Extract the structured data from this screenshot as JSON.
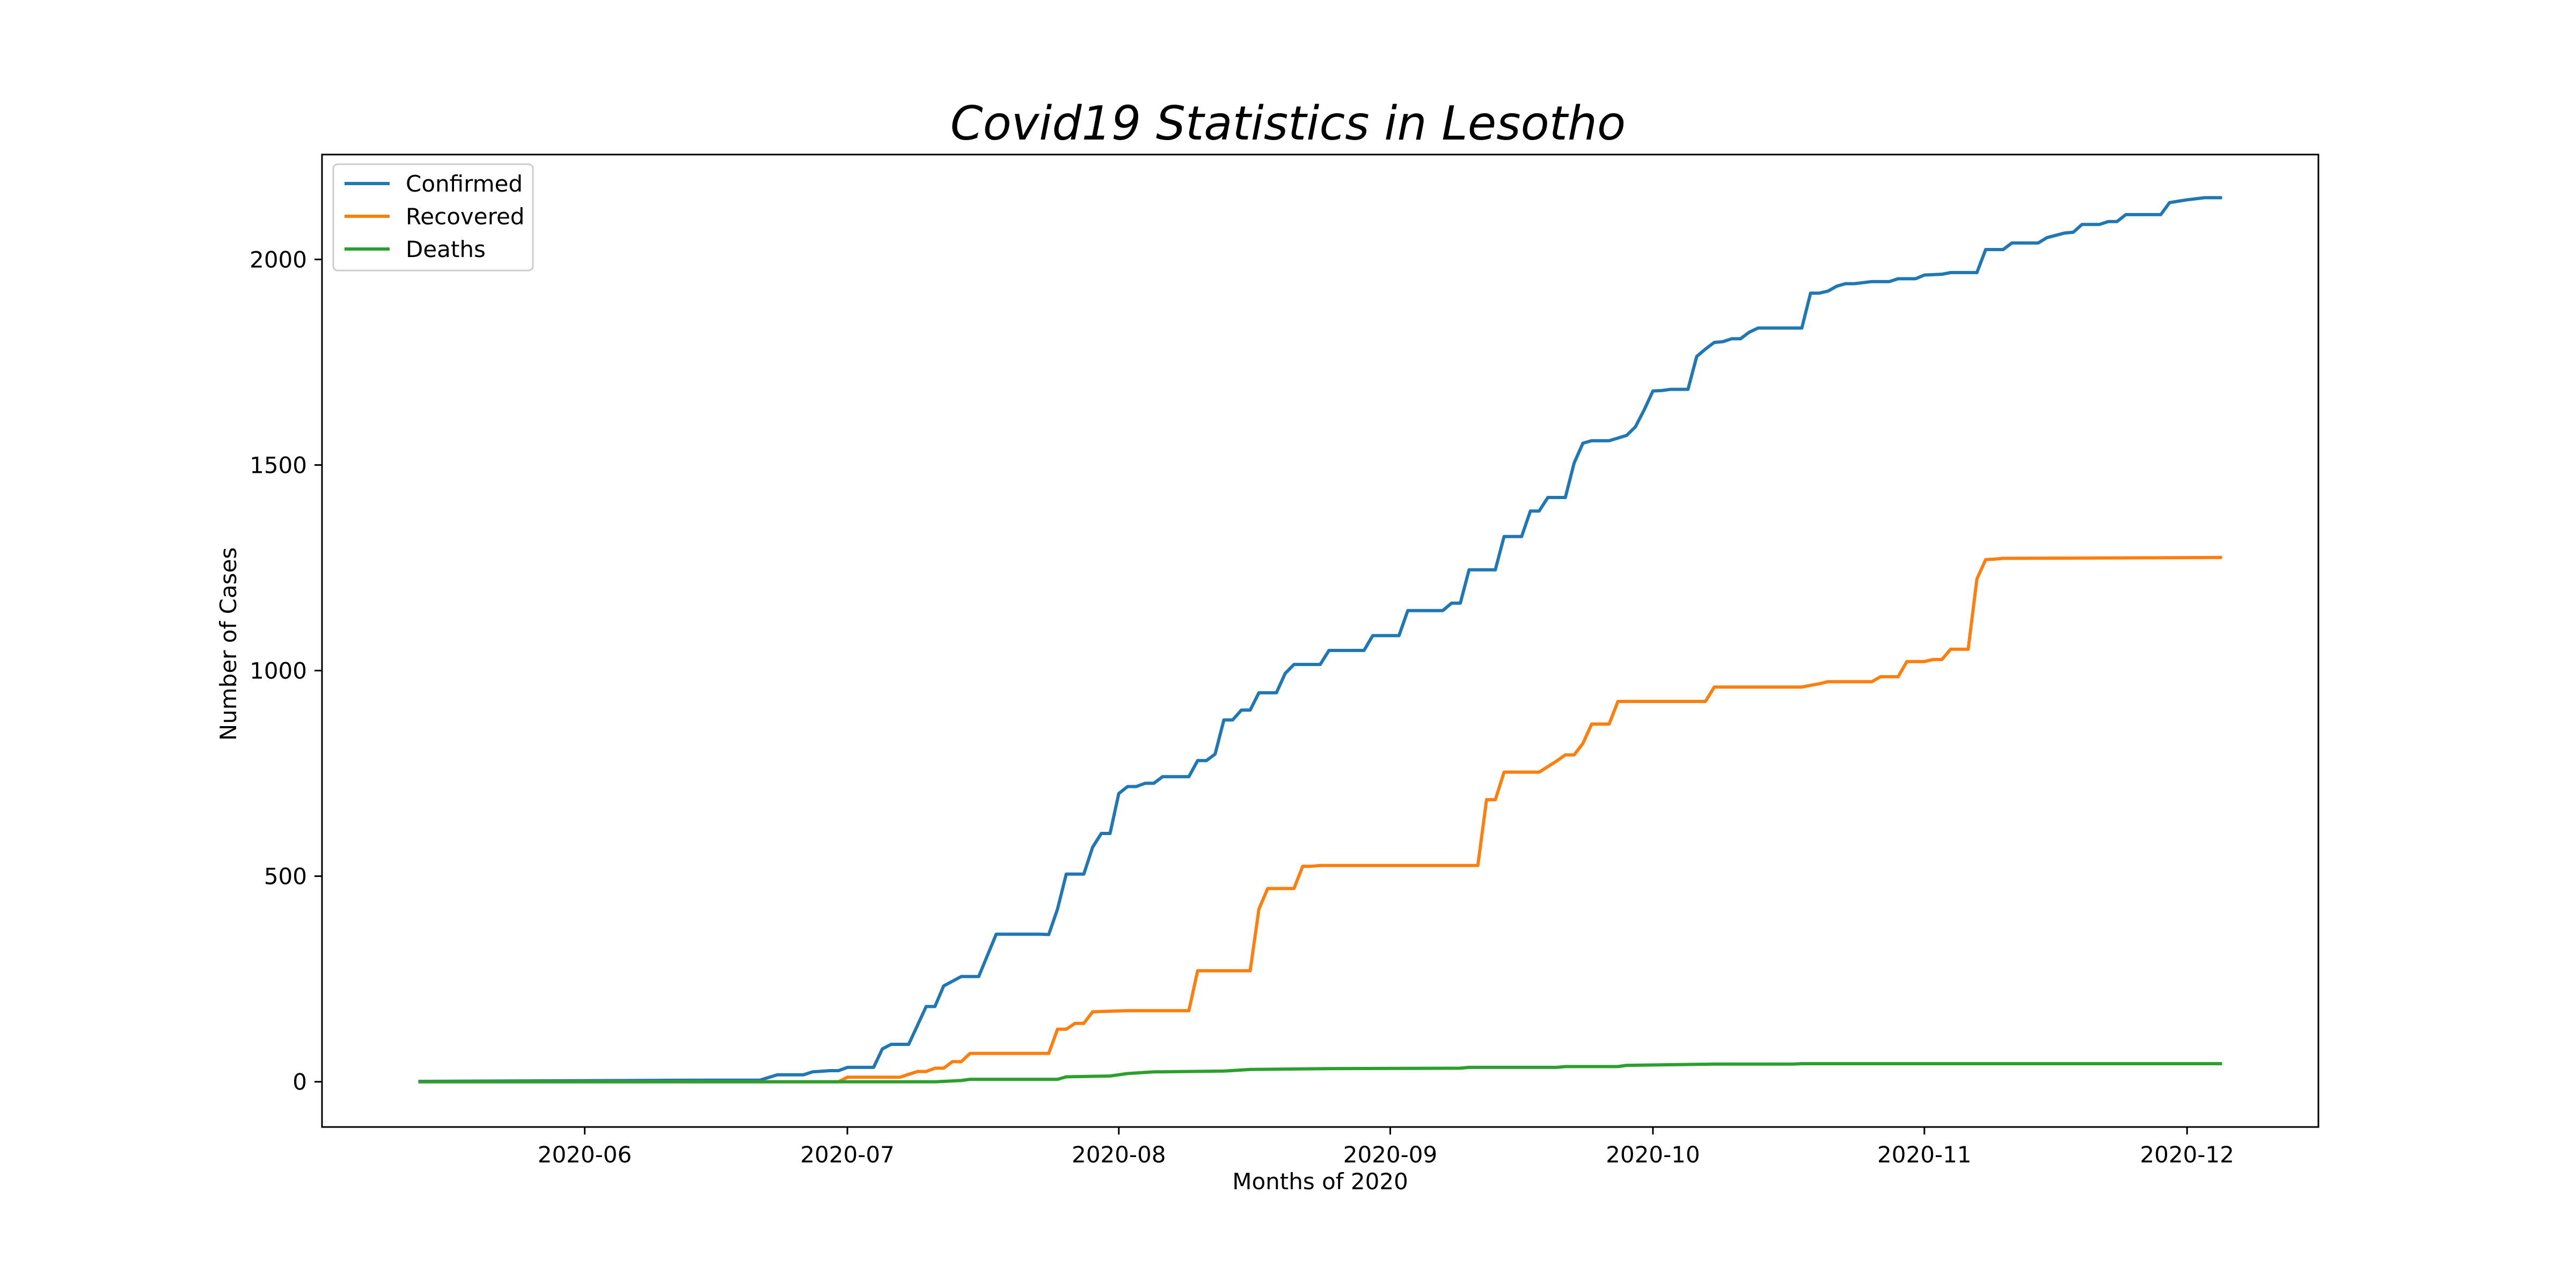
{
  "chart_data": {
    "type": "line",
    "title": "Covid19 Statistics in Lesotho",
    "xlabel": "Months of 2020",
    "ylabel": "Number of Cases",
    "x_axis": {
      "type": "date",
      "range": [
        "2020-05-02",
        "2020-12-16"
      ],
      "ticks": [
        "2020-06-01",
        "2020-07-01",
        "2020-08-01",
        "2020-09-01",
        "2020-10-01",
        "2020-11-01",
        "2020-12-01"
      ],
      "tick_labels": [
        "2020-06",
        "2020-07",
        "2020-08",
        "2020-09",
        "2020-10",
        "2020-11",
        "2020-12"
      ]
    },
    "y_axis": {
      "range": [
        -110,
        2255
      ],
      "ticks": [
        0,
        500,
        1000,
        1500,
        2000
      ],
      "tick_labels": [
        "0",
        "500",
        "1000",
        "1500",
        "2000"
      ]
    },
    "grid": false,
    "legend": {
      "placement": "top-left",
      "entries": [
        "Confirmed",
        "Recovered",
        "Deaths"
      ]
    },
    "series": [
      {
        "name": "Confirmed",
        "color": "#1f77b4",
        "points": [
          [
            "2020-05-13",
            1
          ],
          [
            "2020-06-15",
            4
          ],
          [
            "2020-06-21",
            4
          ],
          [
            "2020-06-23",
            17
          ],
          [
            "2020-06-26",
            17
          ],
          [
            "2020-06-27",
            24
          ],
          [
            "2020-06-29",
            27
          ],
          [
            "2020-06-30",
            27
          ],
          [
            "2020-07-01",
            35
          ],
          [
            "2020-07-04",
            35
          ],
          [
            "2020-07-05",
            80
          ],
          [
            "2020-07-06",
            91
          ],
          [
            "2020-07-08",
            91
          ],
          [
            "2020-07-10",
            183
          ],
          [
            "2020-07-11",
            183
          ],
          [
            "2020-07-12",
            233
          ],
          [
            "2020-07-14",
            256
          ],
          [
            "2020-07-16",
            256
          ],
          [
            "2020-07-18",
            359
          ],
          [
            "2020-07-23",
            359
          ],
          [
            "2020-07-24",
            358
          ],
          [
            "2020-07-25",
            420
          ],
          [
            "2020-07-26",
            505
          ],
          [
            "2020-07-28",
            505
          ],
          [
            "2020-07-29",
            570
          ],
          [
            "2020-07-30",
            604
          ],
          [
            "2020-07-31",
            604
          ],
          [
            "2020-08-01",
            701
          ],
          [
            "2020-08-02",
            718
          ],
          [
            "2020-08-03",
            718
          ],
          [
            "2020-08-04",
            726
          ],
          [
            "2020-08-05",
            726
          ],
          [
            "2020-08-06",
            742
          ],
          [
            "2020-08-09",
            742
          ],
          [
            "2020-08-10",
            781
          ],
          [
            "2020-08-11",
            781
          ],
          [
            "2020-08-12",
            797
          ],
          [
            "2020-08-13",
            880
          ],
          [
            "2020-08-14",
            880
          ],
          [
            "2020-08-15",
            904
          ],
          [
            "2020-08-16",
            904
          ],
          [
            "2020-08-17",
            946
          ],
          [
            "2020-08-19",
            946
          ],
          [
            "2020-08-20",
            993
          ],
          [
            "2020-08-21",
            1015
          ],
          [
            "2020-08-24",
            1015
          ],
          [
            "2020-08-25",
            1049
          ],
          [
            "2020-08-29",
            1049
          ],
          [
            "2020-08-30",
            1085
          ],
          [
            "2020-09-02",
            1085
          ],
          [
            "2020-09-03",
            1146
          ],
          [
            "2020-09-07",
            1146
          ],
          [
            "2020-09-08",
            1164
          ],
          [
            "2020-09-09",
            1164
          ],
          [
            "2020-09-10",
            1245
          ],
          [
            "2020-09-13",
            1245
          ],
          [
            "2020-09-14",
            1326
          ],
          [
            "2020-09-16",
            1326
          ],
          [
            "2020-09-17",
            1388
          ],
          [
            "2020-09-18",
            1388
          ],
          [
            "2020-09-19",
            1421
          ],
          [
            "2020-09-21",
            1421
          ],
          [
            "2020-09-22",
            1505
          ],
          [
            "2020-09-23",
            1553
          ],
          [
            "2020-09-24",
            1559
          ],
          [
            "2020-09-26",
            1559
          ],
          [
            "2020-09-28",
            1572
          ],
          [
            "2020-09-29",
            1593
          ],
          [
            "2020-09-30",
            1634
          ],
          [
            "2020-10-01",
            1680
          ],
          [
            "2020-10-02",
            1681
          ],
          [
            "2020-10-03",
            1684
          ],
          [
            "2020-10-05",
            1684
          ],
          [
            "2020-10-06",
            1764
          ],
          [
            "2020-10-07",
            1782
          ],
          [
            "2020-10-08",
            1798
          ],
          [
            "2020-10-09",
            1800
          ],
          [
            "2020-10-10",
            1807
          ],
          [
            "2020-10-11",
            1807
          ],
          [
            "2020-10-12",
            1823
          ],
          [
            "2020-10-13",
            1833
          ],
          [
            "2020-10-18",
            1833
          ],
          [
            "2020-10-19",
            1918
          ],
          [
            "2020-10-20",
            1918
          ],
          [
            "2020-10-21",
            1923
          ],
          [
            "2020-10-22",
            1935
          ],
          [
            "2020-10-23",
            1941
          ],
          [
            "2020-10-24",
            1941
          ],
          [
            "2020-10-26",
            1946
          ],
          [
            "2020-10-28",
            1946
          ],
          [
            "2020-10-29",
            1953
          ],
          [
            "2020-10-31",
            1953
          ],
          [
            "2020-11-01",
            1962
          ],
          [
            "2020-11-03",
            1964
          ],
          [
            "2020-11-04",
            1968
          ],
          [
            "2020-11-07",
            1968
          ],
          [
            "2020-11-08",
            2024
          ],
          [
            "2020-11-10",
            2024
          ],
          [
            "2020-11-11",
            2040
          ],
          [
            "2020-11-14",
            2040
          ],
          [
            "2020-11-15",
            2053
          ],
          [
            "2020-11-17",
            2064
          ],
          [
            "2020-11-18",
            2066
          ],
          [
            "2020-11-19",
            2085
          ],
          [
            "2020-11-21",
            2085
          ],
          [
            "2020-11-22",
            2092
          ],
          [
            "2020-11-23",
            2092
          ],
          [
            "2020-11-24",
            2109
          ],
          [
            "2020-11-28",
            2109
          ],
          [
            "2020-11-29",
            2138
          ],
          [
            "2020-12-01",
            2145
          ],
          [
            "2020-12-03",
            2150
          ],
          [
            "2020-12-05",
            2150
          ]
        ]
      },
      {
        "name": "Recovered",
        "color": "#ff7f0e",
        "points": [
          [
            "2020-05-13",
            0
          ],
          [
            "2020-06-30",
            0
          ],
          [
            "2020-07-01",
            11
          ],
          [
            "2020-07-07",
            11
          ],
          [
            "2020-07-08",
            18
          ],
          [
            "2020-07-09",
            25
          ],
          [
            "2020-07-10",
            25
          ],
          [
            "2020-07-11",
            33
          ],
          [
            "2020-07-12",
            33
          ],
          [
            "2020-07-13",
            49
          ],
          [
            "2020-07-14",
            49
          ],
          [
            "2020-07-15",
            69
          ],
          [
            "2020-07-24",
            69
          ],
          [
            "2020-07-25",
            128
          ],
          [
            "2020-07-26",
            128
          ],
          [
            "2020-07-27",
            142
          ],
          [
            "2020-07-28",
            142
          ],
          [
            "2020-07-29",
            170
          ],
          [
            "2020-07-30",
            171
          ],
          [
            "2020-08-02",
            173
          ],
          [
            "2020-08-09",
            173
          ],
          [
            "2020-08-10",
            270
          ],
          [
            "2020-08-16",
            270
          ],
          [
            "2020-08-17",
            420
          ],
          [
            "2020-08-18",
            470
          ],
          [
            "2020-08-21",
            470
          ],
          [
            "2020-08-22",
            524
          ],
          [
            "2020-08-23",
            524
          ],
          [
            "2020-08-24",
            526
          ],
          [
            "2020-09-11",
            526
          ],
          [
            "2020-09-12",
            686
          ],
          [
            "2020-09-13",
            686
          ],
          [
            "2020-09-14",
            753
          ],
          [
            "2020-09-18",
            753
          ],
          [
            "2020-09-20",
            780
          ],
          [
            "2020-09-21",
            795
          ],
          [
            "2020-09-22",
            795
          ],
          [
            "2020-09-23",
            823
          ],
          [
            "2020-09-24",
            870
          ],
          [
            "2020-09-26",
            870
          ],
          [
            "2020-09-27",
            925
          ],
          [
            "2020-10-07",
            925
          ],
          [
            "2020-10-08",
            960
          ],
          [
            "2020-10-18",
            960
          ],
          [
            "2020-10-19",
            964
          ],
          [
            "2020-10-20",
            968
          ],
          [
            "2020-10-21",
            973
          ],
          [
            "2020-10-26",
            973
          ],
          [
            "2020-10-27",
            985
          ],
          [
            "2020-10-29",
            985
          ],
          [
            "2020-10-30",
            1022
          ],
          [
            "2020-11-01",
            1022
          ],
          [
            "2020-11-02",
            1027
          ],
          [
            "2020-11-03",
            1027
          ],
          [
            "2020-11-04",
            1052
          ],
          [
            "2020-11-06",
            1052
          ],
          [
            "2020-11-07",
            1223
          ],
          [
            "2020-11-08",
            1270
          ],
          [
            "2020-11-09",
            1271
          ],
          [
            "2020-11-10",
            1273
          ],
          [
            "2020-12-05",
            1275
          ]
        ]
      },
      {
        "name": "Deaths",
        "color": "#2ca02c",
        "points": [
          [
            "2020-05-13",
            0
          ],
          [
            "2020-07-11",
            0
          ],
          [
            "2020-07-14",
            3
          ],
          [
            "2020-07-15",
            6
          ],
          [
            "2020-07-25",
            6
          ],
          [
            "2020-07-26",
            12
          ],
          [
            "2020-07-31",
            14
          ],
          [
            "2020-08-02",
            20
          ],
          [
            "2020-08-05",
            24
          ],
          [
            "2020-08-13",
            26
          ],
          [
            "2020-08-16",
            30
          ],
          [
            "2020-08-25",
            32
          ],
          [
            "2020-09-09",
            33
          ],
          [
            "2020-09-10",
            35
          ],
          [
            "2020-09-20",
            35
          ],
          [
            "2020-09-21",
            37
          ],
          [
            "2020-09-27",
            37
          ],
          [
            "2020-09-28",
            40
          ],
          [
            "2020-10-05",
            42
          ],
          [
            "2020-10-08",
            43
          ],
          [
            "2020-10-17",
            43
          ],
          [
            "2020-10-18",
            44
          ],
          [
            "2020-10-28",
            44
          ],
          [
            "2020-10-29",
            44
          ],
          [
            "2020-12-05",
            44
          ]
        ]
      }
    ]
  }
}
